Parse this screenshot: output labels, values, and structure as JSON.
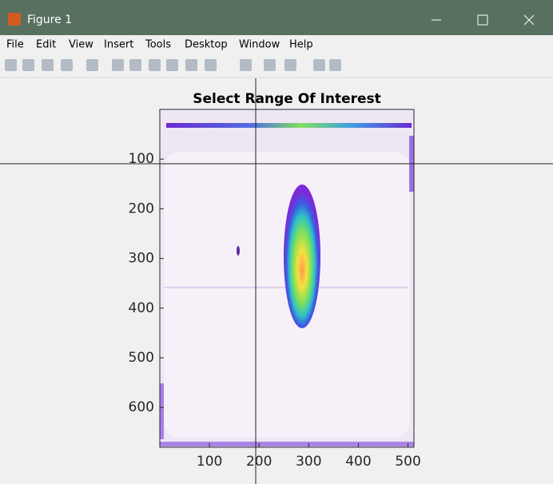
{
  "window": {
    "title": "Figure 1"
  },
  "menu": [
    "File",
    "Edit",
    "View",
    "Insert",
    "Tools",
    "Desktop",
    "Window",
    "Help"
  ],
  "chart_data": {
    "type": "image",
    "title": "Select Range Of Interest",
    "xlim": [
      0,
      512
    ],
    "ylim": [
      0,
      680
    ],
    "xticks": [
      100,
      200,
      300,
      400,
      500
    ],
    "yticks": [
      100,
      200,
      300,
      400,
      500,
      600
    ],
    "y_reversed": true,
    "grid": false
  }
}
